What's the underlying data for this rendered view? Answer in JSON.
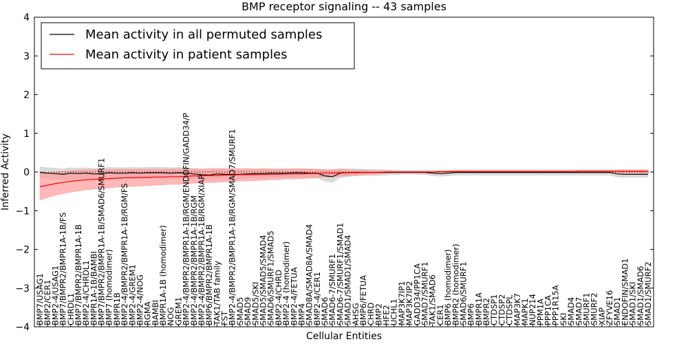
{
  "chart_data": {
    "type": "line",
    "title": "BMP receptor signaling -- 43 samples",
    "xlabel": "Cellular Entities",
    "ylabel": "Inferred Activity",
    "ylim": [
      -4,
      4
    ],
    "yticks": [
      4,
      3,
      2,
      1,
      0,
      -1,
      -2,
      -3,
      -4
    ],
    "legend_location": "upper-left",
    "reference_line": 0,
    "categories": [
      "BMP7/USAG1",
      "BMP2/CER1",
      "BMP2-4/USAG1",
      "BMP7/BMPR2/BMPR1A-1B/FS",
      "CHRDL1",
      "BMP7/BMPR2/BMPR1A-1B",
      "BMP2-4/CHRDL1",
      "BMPR1A-1B/BAMBI",
      "BMP7/BMPR2/BMPR1A-1B/SMAD6/SMURF1",
      "BMP7 (homodimer)",
      "BMPR1B",
      "BMP2-4/BMPR2/BMPR1A-1B/RGM/FS",
      "BMP2-4/GREM1",
      "BMP2-4/NOG",
      "RGMA",
      "BAMBI",
      "BMPR1A-1B (homodimer)",
      "NOG",
      "GREM1",
      "BMP2-4/BMPR2/BMPR1A-1B/RGM/ENDOFIN/GADD34/P",
      "BMP2-4/BMPR2/BMPR1A-1B/RGM",
      "BMP2-4/BMPR2/BMPR1A-1B/RGM/XIAP",
      "BMP6/BMPR2/BMPR1A-1B",
      "TAK1/TAB family",
      "FST",
      "BMP2-4/BMPR2/BMPR1A-1B/RGM/SMAD7/SMURF1",
      "SMAD5",
      "SMAD9",
      "SMAD5/SKI",
      "SMAD5/SMAD5/SMAD4",
      "SMAD6/SMURF1/SMAD5",
      "BMP2-4/CHRD",
      "BMP2-4 (homodimer)",
      "BMP2-4/FETUA",
      "BMP4",
      "SMAD8A/SMAD8A/SMAD4",
      "BMP2-4/CER1",
      "SMAD6",
      "SMAD6-7/SMURF1",
      "SMAD6-7/SMURF1/SMAD1",
      "SMAD1/SMAD1/SMAD4",
      "AHSG",
      "BMP6/FETUA",
      "CHRD",
      "BMP2",
      "HFE2",
      "UCHL1",
      "MAP3K7IP1",
      "MAP3K7IP2",
      "GADD34/PP1CA",
      "SMAD7/SMURF1",
      "TAK1/SMAD6",
      "CER1",
      "BMP6 (homodimer)",
      "BMPR2 (homodimer)",
      "SMAD6/SMURF1",
      "BMP6",
      "BMPR1A",
      "BMPR2",
      "CTDSP1",
      "CTDSP2",
      "CTDSPL",
      "MAP3K7",
      "MAPK1",
      "NUP214",
      "PPM1A",
      "PPP1CA",
      "PPP1R15A",
      "SKI",
      "SMAD4",
      "SMAD7",
      "SMURF1",
      "SMURF2",
      "XIAP",
      "ZFYVE16",
      "SMAD1",
      "ENDOFIN/SMAD1",
      "SMAD1/SKI",
      "SMAD1/SMAD6",
      "SMAD1/SMURF2"
    ],
    "series": [
      {
        "name": "Mean activity in all permuted samples",
        "color": "#000000",
        "band_color": "#cccccc",
        "values": [
          -0.01,
          -0.03,
          -0.04,
          -0.06,
          -0.03,
          -0.04,
          -0.03,
          -0.05,
          -0.04,
          -0.02,
          -0.03,
          -0.03,
          -0.02,
          -0.03,
          -0.02,
          -0.02,
          -0.02,
          -0.03,
          -0.02,
          -0.03,
          -0.05,
          -0.07,
          -0.08,
          -0.05,
          -0.06,
          -0.07,
          -0.06,
          -0.05,
          -0.04,
          -0.04,
          -0.03,
          -0.03,
          -0.03,
          -0.02,
          -0.02,
          -0.03,
          -0.03,
          -0.1,
          -0.12,
          -0.03,
          -0.02,
          -0.01,
          -0.01,
          -0.01,
          -0.01,
          -0.01,
          -0.01,
          -0.01,
          -0.01,
          -0.01,
          -0.01,
          -0.03,
          -0.04,
          -0.03,
          -0.01,
          -0.01,
          -0.01,
          -0.01,
          -0.01,
          -0.01,
          -0.01,
          -0.01,
          -0.01,
          -0.01,
          -0.01,
          -0.01,
          -0.01,
          -0.01,
          -0.01,
          -0.01,
          -0.01,
          -0.01,
          -0.01,
          -0.01,
          -0.01,
          -0.05,
          -0.06,
          -0.06,
          -0.06,
          -0.06
        ],
        "band_half_width": [
          0.14,
          0.14,
          0.14,
          0.14,
          0.14,
          0.14,
          0.14,
          0.14,
          0.14,
          0.14,
          0.14,
          0.14,
          0.14,
          0.14,
          0.14,
          0.14,
          0.14,
          0.14,
          0.14,
          0.14,
          0.12,
          0.12,
          0.12,
          0.12,
          0.12,
          0.12,
          0.11,
          0.11,
          0.11,
          0.11,
          0.11,
          0.11,
          0.11,
          0.11,
          0.11,
          0.11,
          0.11,
          0.14,
          0.15,
          0.12,
          0.1,
          0.09,
          0.08,
          0.08,
          0.08,
          0.07,
          0.06,
          0.05,
          0.05,
          0.05,
          0.06,
          0.07,
          0.07,
          0.07,
          0.07,
          0.07,
          0.07,
          0.07,
          0.07,
          0.07,
          0.07,
          0.07,
          0.07,
          0.07,
          0.07,
          0.07,
          0.07,
          0.07,
          0.07,
          0.07,
          0.07,
          0.07,
          0.07,
          0.07,
          0.07,
          0.08,
          0.08,
          0.08,
          0.08,
          0.08
        ]
      },
      {
        "name": "Mean activity in patient samples",
        "color": "#ff0000",
        "band_color": "#ff9999",
        "values": [
          -0.38,
          -0.34,
          -0.3,
          -0.27,
          -0.24,
          -0.22,
          -0.2,
          -0.19,
          -0.18,
          -0.17,
          -0.16,
          -0.15,
          -0.15,
          -0.14,
          -0.14,
          -0.13,
          -0.13,
          -0.12,
          -0.12,
          -0.11,
          -0.1,
          -0.1,
          -0.09,
          -0.09,
          -0.08,
          -0.08,
          -0.07,
          -0.07,
          -0.07,
          -0.06,
          -0.06,
          -0.06,
          -0.05,
          -0.05,
          -0.05,
          -0.04,
          -0.04,
          -0.03,
          -0.03,
          -0.02,
          -0.02,
          -0.02,
          -0.01,
          -0.01,
          -0.01,
          0.0,
          0.0,
          0.0,
          0.0,
          0.0,
          0.0,
          0.0,
          0.01,
          0.01,
          0.01,
          0.01,
          0.01,
          0.01,
          0.01,
          0.01,
          0.01,
          0.01,
          0.01,
          0.01,
          0.01,
          0.01,
          0.01,
          0.01,
          0.01,
          0.01,
          0.02,
          0.02,
          0.02,
          0.02,
          0.02,
          0.02,
          0.02,
          0.02,
          0.02,
          0.02
        ],
        "band_half_width": [
          0.34,
          0.32,
          0.3,
          0.29,
          0.28,
          0.27,
          0.26,
          0.25,
          0.25,
          0.24,
          0.23,
          0.23,
          0.22,
          0.22,
          0.21,
          0.21,
          0.2,
          0.2,
          0.2,
          0.19,
          0.19,
          0.18,
          0.18,
          0.18,
          0.17,
          0.17,
          0.16,
          0.16,
          0.15,
          0.15,
          0.14,
          0.14,
          0.13,
          0.13,
          0.12,
          0.12,
          0.11,
          0.1,
          0.1,
          0.09,
          0.08,
          0.07,
          0.06,
          0.05,
          0.04,
          0.03,
          0.02,
          0.02,
          0.02,
          0.02,
          0.02,
          0.02,
          0.02,
          0.02,
          0.02,
          0.02,
          0.02,
          0.02,
          0.02,
          0.02,
          0.02,
          0.02,
          0.02,
          0.02,
          0.02,
          0.02,
          0.02,
          0.02,
          0.02,
          0.02,
          0.02,
          0.02,
          0.02,
          0.02,
          0.02,
          0.04,
          0.04,
          0.04,
          0.04,
          0.04
        ]
      }
    ]
  }
}
